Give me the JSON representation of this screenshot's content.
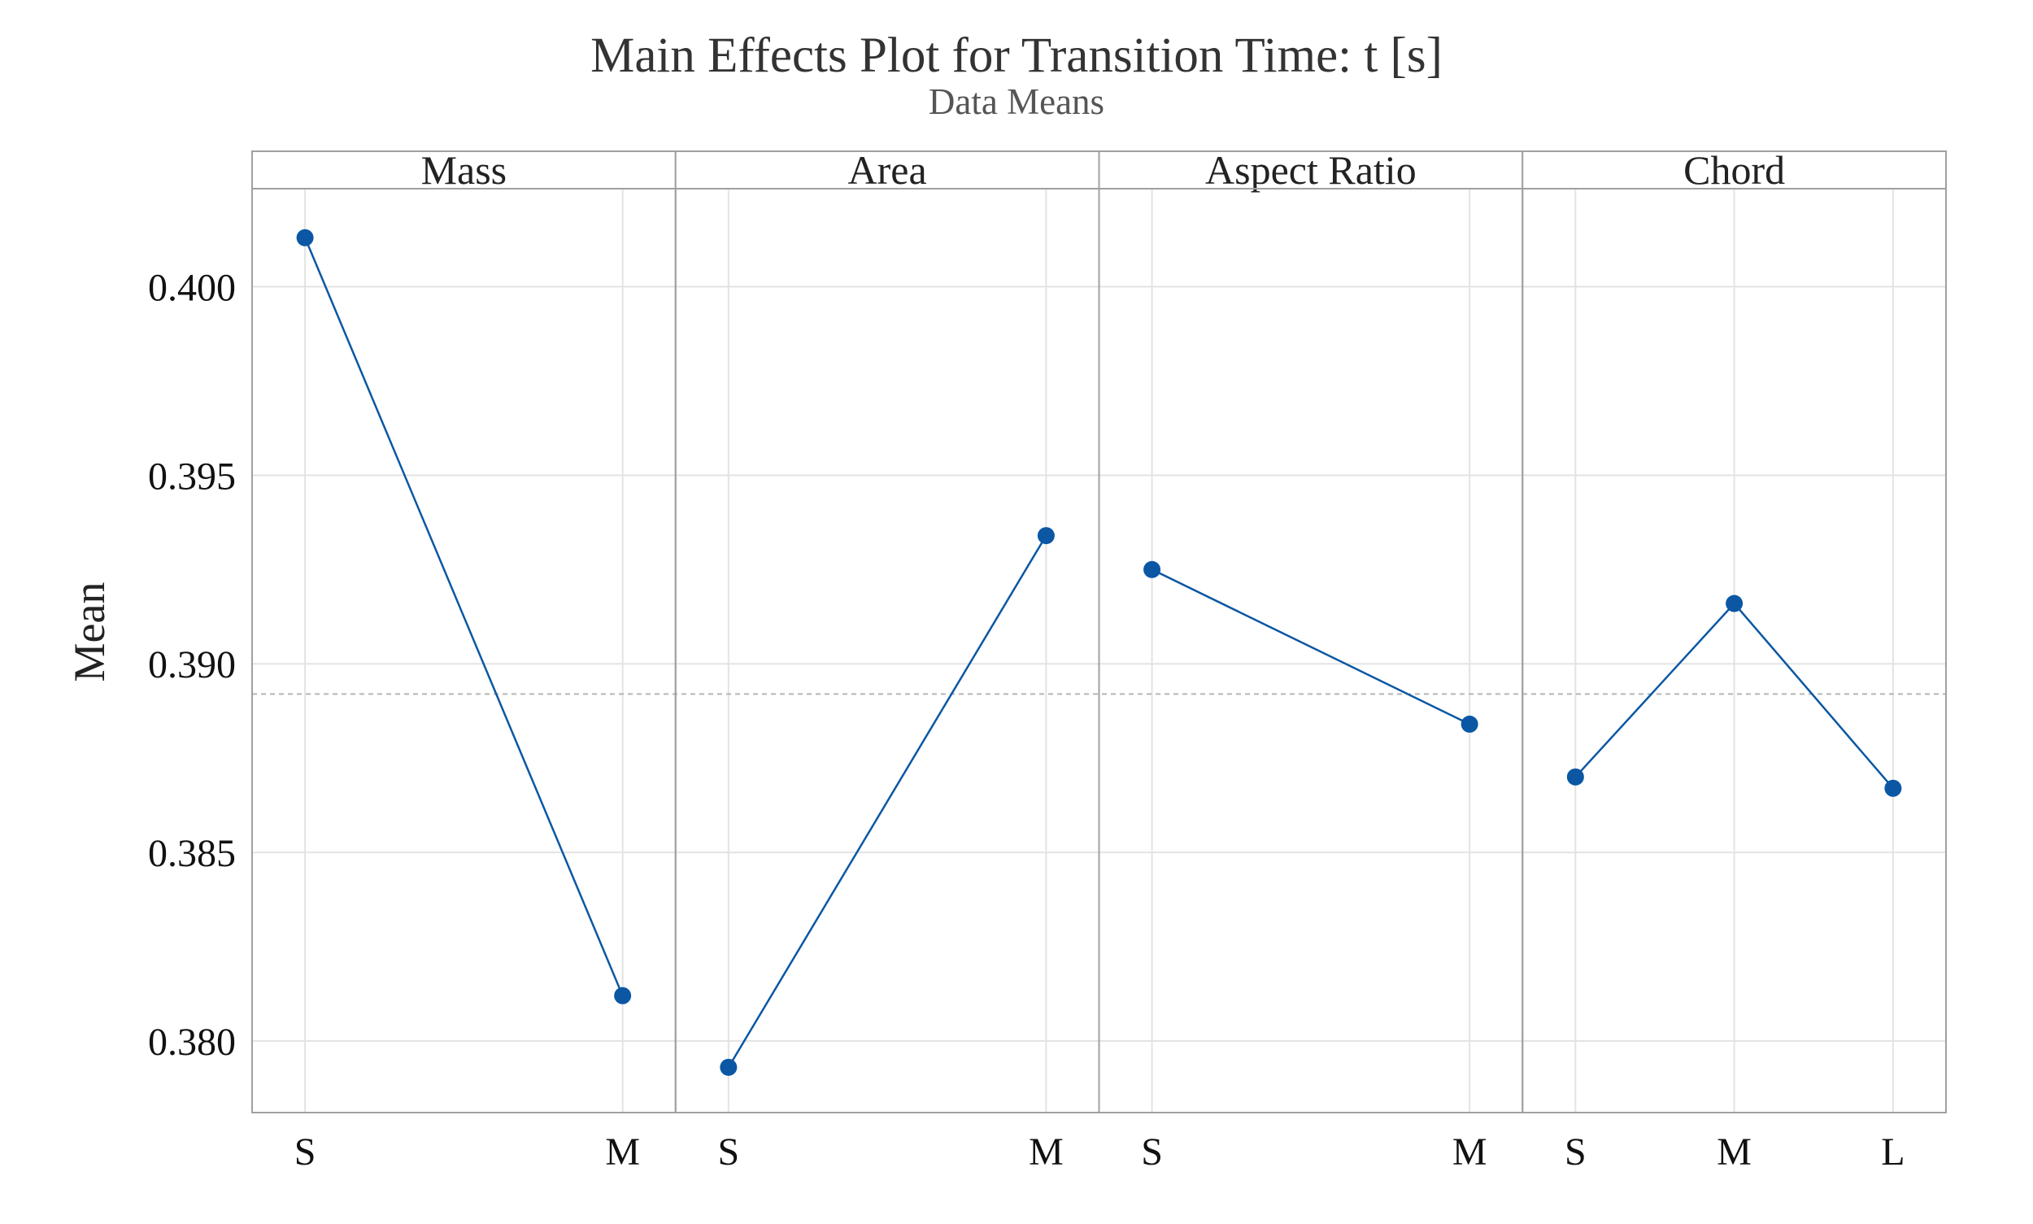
{
  "chart_data": {
    "type": "line",
    "title": "Main Effects Plot for Transition Time: t [s]",
    "subtitle": "Data Means",
    "ylabel": "Mean",
    "xlabel": "",
    "ylim": [
      0.3781,
      0.4026
    ],
    "yticks": [
      0.38,
      0.385,
      0.39,
      0.395,
      0.4
    ],
    "ytick_labels": [
      "0.380",
      "0.385",
      "0.390",
      "0.395",
      "0.400"
    ],
    "reference_line": 0.3892,
    "grid": true,
    "panels": [
      {
        "name": "Mass",
        "categories": [
          "S",
          "M"
        ],
        "values": [
          0.4013,
          0.3812
        ]
      },
      {
        "name": "Area",
        "categories": [
          "S",
          "M"
        ],
        "values": [
          0.3793,
          0.3934
        ]
      },
      {
        "name": "Aspect Ratio",
        "categories": [
          "S",
          "M"
        ],
        "values": [
          0.3925,
          0.3884
        ]
      },
      {
        "name": "Chord",
        "categories": [
          "S",
          "M",
          "L"
        ],
        "values": [
          0.387,
          0.3916,
          0.3867
        ]
      }
    ]
  },
  "colors": {
    "series": "#0b57a4",
    "grid": "#e3e3e3",
    "frame": "#a0a0a0",
    "reference": "#b5b5b5"
  }
}
